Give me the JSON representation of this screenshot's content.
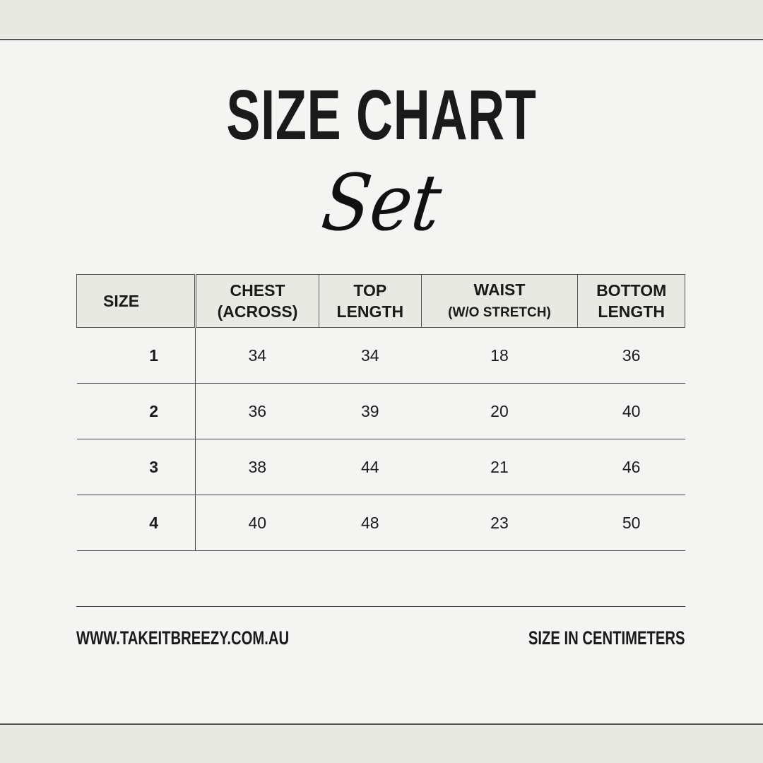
{
  "title": "SIZE CHART",
  "subtitle": "Set",
  "table": {
    "headers": [
      {
        "line1": "SIZE",
        "line2": ""
      },
      {
        "line1": "CHEST",
        "line2": "(ACROSS)"
      },
      {
        "line1": "TOP",
        "line2": "LENGTH"
      },
      {
        "line1": "WAIST",
        "line2": "(W/O STRETCH)"
      },
      {
        "line1": "BOTTOM",
        "line2": "LENGTH"
      }
    ],
    "rows": [
      [
        "1",
        "34",
        "34",
        "18",
        "36"
      ],
      [
        "2",
        "36",
        "39",
        "20",
        "40"
      ],
      [
        "3",
        "38",
        "44",
        "21",
        "46"
      ],
      [
        "4",
        "40",
        "48",
        "23",
        "50"
      ]
    ]
  },
  "footer": {
    "website": "WWW.TAKEITBREEZY.COM.AU",
    "unit_note": "SIZE IN CENTIMETERS"
  },
  "colors": {
    "background": "#f4f4f2",
    "band": "#e9e9e4",
    "text": "#1a1a1a"
  }
}
